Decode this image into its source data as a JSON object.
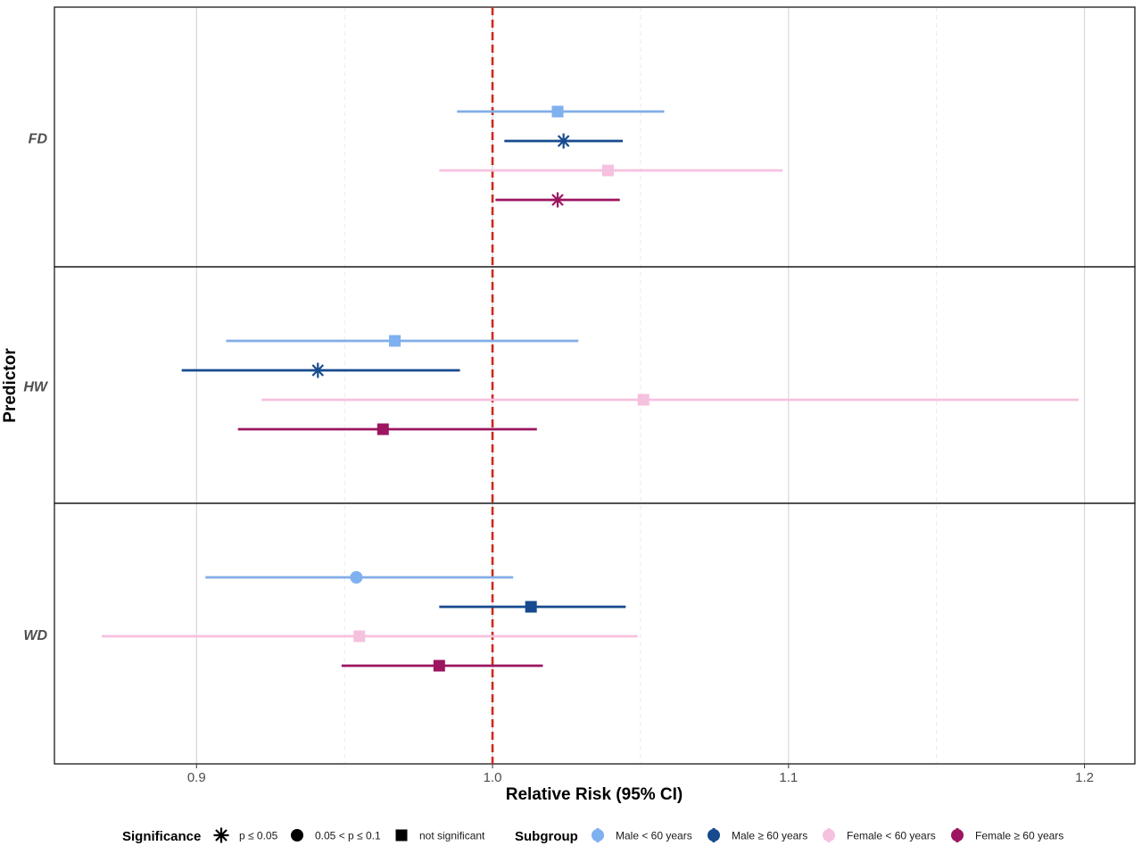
{
  "chart_data": {
    "type": "scatter",
    "subtype": "forest-plot",
    "xlabel": "Relative Risk (95% CI)",
    "ylabel": "Predictor",
    "xlim": [
      0.852,
      1.217
    ],
    "xticks": [
      0.9,
      1.0,
      1.1,
      1.2
    ],
    "xtick_labels": [
      "0.9",
      "1.0",
      "1.1",
      "1.2"
    ],
    "minor_gridlines": [
      0.95,
      1.05,
      1.15
    ],
    "reference_line": 1.0,
    "reference_color": "#cc2a1f",
    "grid": true,
    "legend_position": "bottom",
    "predictors": [
      "FD",
      "HW",
      "WD"
    ],
    "significance": {
      "title": "Significance",
      "items": [
        {
          "key": "sig",
          "label": "p ≤ 0.05",
          "shape": "asterisk"
        },
        {
          "key": "marg",
          "label": "0.05 < p ≤ 0.1",
          "shape": "circle"
        },
        {
          "key": "ns",
          "label": "not significant",
          "shape": "square"
        }
      ]
    },
    "subgroups": {
      "title": "Subgroup",
      "items": [
        {
          "key": "m_lt60",
          "label": "Male < 60 years",
          "color": "#7fb0ef",
          "line_color": "#82aee6"
        },
        {
          "key": "m_ge60",
          "label": "Male ≥ 60 years",
          "color": "#174a8e",
          "line_color": "#174a8e"
        },
        {
          "key": "f_lt60",
          "label": "Female < 60 years",
          "color": "#f6c0df",
          "line_color": "#f6c0df"
        },
        {
          "key": "f_ge60",
          "label": "Female ≥ 60 years",
          "color": "#9c1560",
          "line_color": "#9c1560"
        }
      ]
    },
    "estimates": [
      {
        "predictor": "FD",
        "subgroup": "m_lt60",
        "rr": 1.022,
        "lo": 0.988,
        "hi": 1.058,
        "sig": "ns"
      },
      {
        "predictor": "FD",
        "subgroup": "m_ge60",
        "rr": 1.024,
        "lo": 1.004,
        "hi": 1.044,
        "sig": "sig"
      },
      {
        "predictor": "FD",
        "subgroup": "f_lt60",
        "rr": 1.039,
        "lo": 0.982,
        "hi": 1.098,
        "sig": "ns"
      },
      {
        "predictor": "FD",
        "subgroup": "f_ge60",
        "rr": 1.022,
        "lo": 1.001,
        "hi": 1.043,
        "sig": "sig"
      },
      {
        "predictor": "HW",
        "subgroup": "m_lt60",
        "rr": 0.967,
        "lo": 0.91,
        "hi": 1.029,
        "sig": "ns"
      },
      {
        "predictor": "HW",
        "subgroup": "m_ge60",
        "rr": 0.941,
        "lo": 0.895,
        "hi": 0.989,
        "sig": "sig"
      },
      {
        "predictor": "HW",
        "subgroup": "f_lt60",
        "rr": 1.051,
        "lo": 0.922,
        "hi": 1.198,
        "sig": "ns"
      },
      {
        "predictor": "HW",
        "subgroup": "f_ge60",
        "rr": 0.963,
        "lo": 0.914,
        "hi": 1.015,
        "sig": "ns"
      },
      {
        "predictor": "WD",
        "subgroup": "m_lt60",
        "rr": 0.954,
        "lo": 0.903,
        "hi": 1.007,
        "sig": "marg"
      },
      {
        "predictor": "WD",
        "subgroup": "m_ge60",
        "rr": 1.013,
        "lo": 0.982,
        "hi": 1.045,
        "sig": "ns"
      },
      {
        "predictor": "WD",
        "subgroup": "f_lt60",
        "rr": 0.955,
        "lo": 0.868,
        "hi": 1.049,
        "sig": "ns"
      },
      {
        "predictor": "WD",
        "subgroup": "f_ge60",
        "rr": 0.982,
        "lo": 0.949,
        "hi": 1.017,
        "sig": "ns"
      }
    ]
  }
}
